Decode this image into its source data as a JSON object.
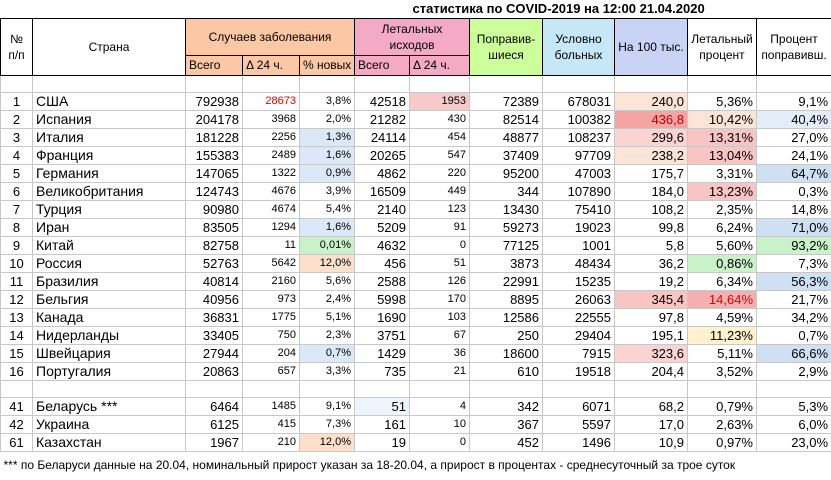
{
  "title": "статистика по COVID-2019 на 12:00 21.04.2020",
  "table": {
    "header": [
      "№\nп/п",
      "Страна",
      "Случаев заболевания",
      "Летальных исходов",
      "Поправив-\nшиеся",
      "Условно\nбольных",
      "На 100 тыс.",
      "Летальный\nпроцент",
      "Процент\nпоправивш."
    ],
    "subheader": [
      "Всего",
      "Δ 24 ч.",
      "% новых",
      "Всего",
      "Δ 24 ч."
    ],
    "rows": [
      [
        "1",
        "США",
        "792938",
        "28673",
        "3,8%",
        "42518",
        "1953",
        "72389",
        "678031",
        "240,0",
        "5,36%",
        "9,1%"
      ],
      [
        "2",
        "Испания",
        "204178",
        "3968",
        "2,0%",
        "21282",
        "430",
        "82514",
        "100382",
        "436,8",
        "10,42%",
        "40,4%"
      ],
      [
        "3",
        "Италия",
        "181228",
        "2256",
        "1,3%",
        "24114",
        "454",
        "48877",
        "108237",
        "299,6",
        "13,31%",
        "27,0%"
      ],
      [
        "4",
        "Франция",
        "155383",
        "2489",
        "1,6%",
        "20265",
        "547",
        "37409",
        "97709",
        "238,2",
        "13,04%",
        "24,1%"
      ],
      [
        "5",
        "Германия",
        "147065",
        "1322",
        "0,9%",
        "4862",
        "220",
        "95200",
        "47003",
        "175,7",
        "3,31%",
        "64,7%"
      ],
      [
        "6",
        "Великобритания",
        "124743",
        "4676",
        "3,9%",
        "16509",
        "449",
        "344",
        "107890",
        "184,0",
        "13,23%",
        "0,3%"
      ],
      [
        "7",
        "Турция",
        "90980",
        "4674",
        "5,4%",
        "2140",
        "123",
        "13430",
        "75410",
        "108,2",
        "2,35%",
        "14,8%"
      ],
      [
        "8",
        "Иран",
        "83505",
        "1294",
        "1,6%",
        "5209",
        "91",
        "59273",
        "19023",
        "99,8",
        "6,24%",
        "71,0%"
      ],
      [
        "9",
        "Китай",
        "82758",
        "11",
        "0,01%",
        "4632",
        "0",
        "77125",
        "1001",
        "5,8",
        "5,60%",
        "93,2%"
      ],
      [
        "10",
        "Россия",
        "52763",
        "5642",
        "12,0%",
        "456",
        "51",
        "3873",
        "48434",
        "36,2",
        "0,86%",
        "7,3%"
      ],
      [
        "11",
        "Бразилия",
        "40814",
        "2160",
        "5,6%",
        "2588",
        "126",
        "22991",
        "15235",
        "19,2",
        "6,34%",
        "56,3%"
      ],
      [
        "12",
        "Бельгия",
        "40956",
        "973",
        "2,4%",
        "5998",
        "170",
        "8895",
        "26063",
        "345,4",
        "14,64%",
        "21,7%"
      ],
      [
        "13",
        "Канада",
        "36831",
        "1775",
        "5,1%",
        "1690",
        "103",
        "12586",
        "22555",
        "97,8",
        "4,59%",
        "34,2%"
      ],
      [
        "14",
        "Нидерланды",
        "33405",
        "750",
        "2,3%",
        "3751",
        "67",
        "250",
        "29404",
        "195,1",
        "11,23%",
        "0,7%"
      ],
      [
        "15",
        "Швейцария",
        "27944",
        "204",
        "0,7%",
        "1429",
        "36",
        "18600",
        "7915",
        "323,6",
        "5,11%",
        "66,6%"
      ],
      [
        "16",
        "Португалия",
        "20863",
        "657",
        "3,3%",
        "735",
        "21",
        "610",
        "19518",
        "204,4",
        "3,52%",
        "2,9%"
      ]
    ],
    "extra_rows": [
      [
        "41",
        "Беларусь ***",
        "6464",
        "1485",
        "9,1%",
        "51",
        "4",
        "342",
        "6071",
        "68,2",
        "0,79%",
        "5,3%"
      ],
      [
        "42",
        "Украина",
        "6125",
        "415",
        "7,3%",
        "161",
        "10",
        "367",
        "5597",
        "17,0",
        "2,63%",
        "6,0%"
      ],
      [
        "61",
        "Казахстан",
        "1967",
        "210",
        "12,0%",
        "19",
        "0",
        "452",
        "1496",
        "10,9",
        "0,97%",
        "23,0%"
      ]
    ]
  },
  "footnote": "*** по Беларуси данные на 20.04, номинальный прирост указан за 18-20.04, а прирост в процентах - среднесуточный за трое суток"
}
